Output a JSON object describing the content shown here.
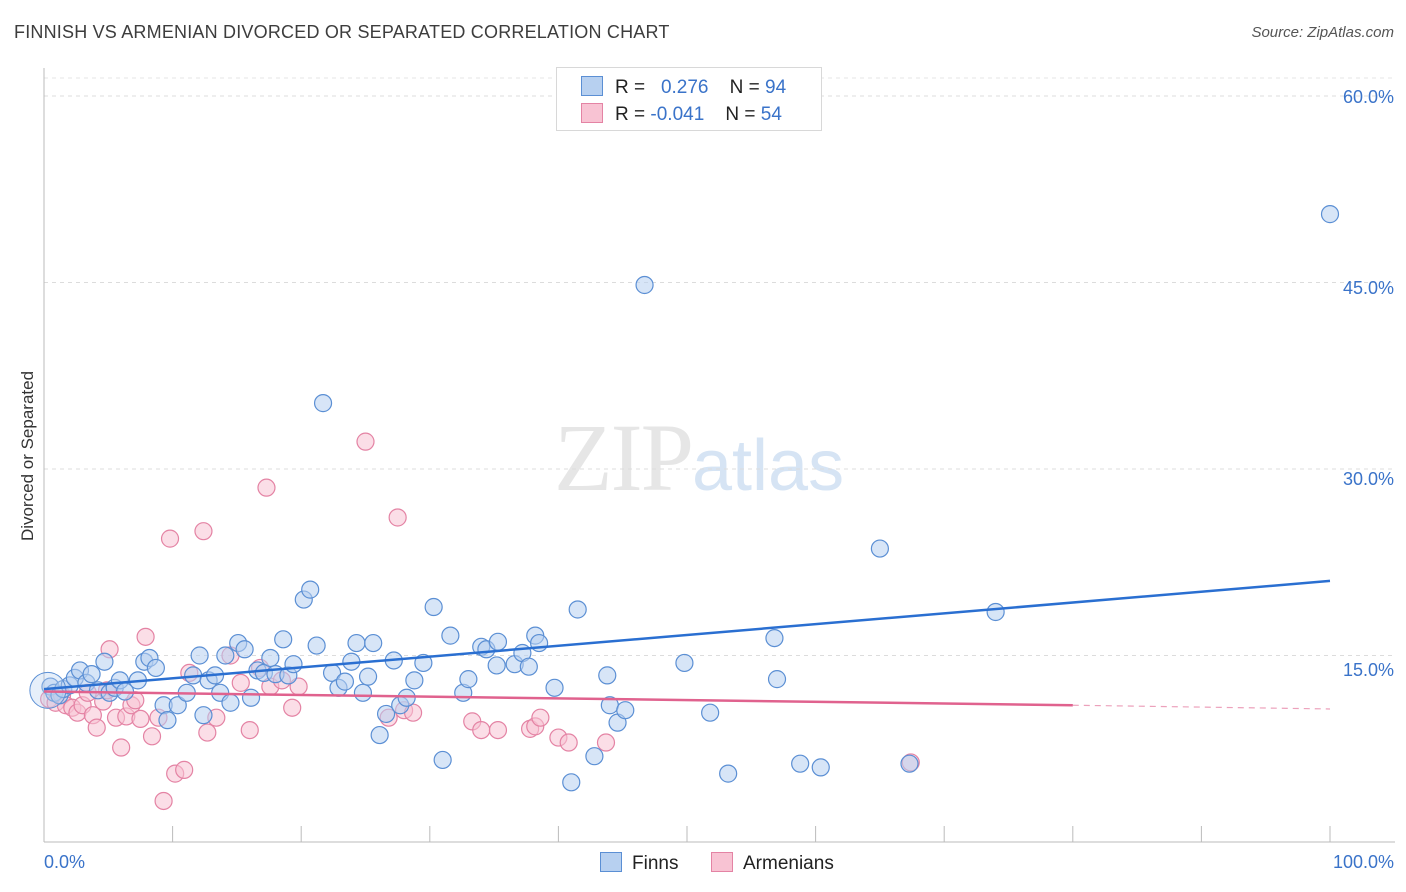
{
  "header": {
    "title": "FINNISH VS ARMENIAN DIVORCED OR SEPARATED CORRELATION CHART",
    "source": "Source: ZipAtlas.com"
  },
  "watermark": {
    "zip": "ZIP",
    "atlas": "atlas"
  },
  "legend": {
    "rows": [
      {
        "r_label": "R =",
        "r_value": "0.276",
        "n_label": "N =",
        "n_value": "94"
      },
      {
        "r_label": "R =",
        "r_value": "-0.041",
        "n_label": "N =",
        "n_value": "54"
      }
    ]
  },
  "bottom_legend": {
    "finns": "Finns",
    "armenians": "Armenians"
  },
  "axes": {
    "ylabel": "Divorced or Separated",
    "yticks": [
      "60.0%",
      "45.0%",
      "30.0%",
      "15.0%"
    ],
    "xtick_left": "0.0%",
    "xtick_right": "100.0%"
  },
  "colors": {
    "finns_fill": "#b7d0f0",
    "finns_stroke": "#5b8fd4",
    "finns_line": "#2a6fd1",
    "armenians_fill": "#f8c3d3",
    "armenians_stroke": "#e483a4",
    "armenians_line": "#e0628e",
    "tick_text": "#3a73c9"
  },
  "chart_data": {
    "type": "scatter",
    "title": "FINNISH VS ARMENIAN DIVORCED OR SEPARATED CORRELATION CHART",
    "xlabel": "",
    "ylabel": "Divorced or Separated",
    "xlim": [
      0,
      100
    ],
    "ylim": [
      0,
      60
    ],
    "grid": true,
    "legend_placement": "top-center",
    "series": [
      {
        "name": "Finns",
        "R": 0.276,
        "N": 94,
        "trend": {
          "x": [
            0,
            100
          ],
          "y": [
            12.3,
            21.0
          ]
        },
        "points": [
          [
            0.5,
            12.5
          ],
          [
            0.8,
            12.0
          ],
          [
            1.2,
            11.8
          ],
          [
            1.5,
            12.3
          ],
          [
            2.0,
            12.6
          ],
          [
            2.4,
            13.2
          ],
          [
            2.8,
            13.8
          ],
          [
            3.3,
            12.8
          ],
          [
            3.7,
            13.5
          ],
          [
            4.2,
            12.2
          ],
          [
            4.7,
            14.5
          ],
          [
            5.1,
            12.0
          ],
          [
            5.5,
            12.4
          ],
          [
            5.9,
            13.0
          ],
          [
            6.3,
            12.1
          ],
          [
            7.3,
            13.0
          ],
          [
            7.8,
            14.5
          ],
          [
            8.2,
            14.8
          ],
          [
            8.7,
            14.0
          ],
          [
            9.3,
            11.0
          ],
          [
            9.6,
            9.8
          ],
          [
            10.4,
            11.0
          ],
          [
            11.1,
            12.0
          ],
          [
            11.6,
            13.4
          ],
          [
            12.1,
            15.0
          ],
          [
            12.4,
            10.2
          ],
          [
            12.8,
            13.0
          ],
          [
            13.3,
            13.4
          ],
          [
            13.7,
            12.0
          ],
          [
            14.1,
            15.0
          ],
          [
            14.5,
            11.2
          ],
          [
            15.1,
            16.0
          ],
          [
            15.6,
            15.5
          ],
          [
            16.1,
            11.6
          ],
          [
            16.6,
            13.8
          ],
          [
            17.1,
            13.6
          ],
          [
            17.6,
            14.8
          ],
          [
            18.0,
            13.5
          ],
          [
            18.6,
            16.3
          ],
          [
            19.0,
            13.4
          ],
          [
            19.4,
            14.3
          ],
          [
            20.2,
            19.5
          ],
          [
            20.7,
            20.3
          ],
          [
            21.2,
            15.8
          ],
          [
            21.7,
            35.3
          ],
          [
            22.4,
            13.6
          ],
          [
            22.9,
            12.4
          ],
          [
            23.4,
            12.9
          ],
          [
            23.9,
            14.5
          ],
          [
            24.3,
            16.0
          ],
          [
            24.8,
            12.0
          ],
          [
            25.2,
            13.3
          ],
          [
            25.6,
            16.0
          ],
          [
            26.1,
            8.6
          ],
          [
            26.6,
            10.3
          ],
          [
            27.2,
            14.6
          ],
          [
            27.7,
            11.0
          ],
          [
            28.2,
            11.6
          ],
          [
            28.8,
            13.0
          ],
          [
            29.5,
            14.4
          ],
          [
            30.3,
            18.9
          ],
          [
            31.0,
            6.6
          ],
          [
            31.6,
            16.6
          ],
          [
            32.6,
            12.0
          ],
          [
            33.0,
            13.1
          ],
          [
            34.0,
            15.7
          ],
          [
            34.4,
            15.5
          ],
          [
            35.3,
            16.1
          ],
          [
            35.2,
            14.2
          ],
          [
            36.6,
            14.3
          ],
          [
            37.2,
            15.2
          ],
          [
            37.7,
            14.1
          ],
          [
            38.2,
            16.6
          ],
          [
            38.5,
            16.0
          ],
          [
            39.7,
            12.4
          ],
          [
            41.0,
            4.8
          ],
          [
            41.5,
            18.7
          ],
          [
            42.8,
            6.9
          ],
          [
            43.8,
            13.4
          ],
          [
            44.0,
            11.0
          ],
          [
            44.6,
            9.6
          ],
          [
            45.2,
            10.6
          ],
          [
            46.7,
            44.8
          ],
          [
            49.8,
            14.4
          ],
          [
            51.8,
            10.4
          ],
          [
            53.2,
            5.5
          ],
          [
            56.8,
            16.4
          ],
          [
            57.0,
            13.1
          ],
          [
            58.8,
            6.3
          ],
          [
            60.4,
            6.0
          ],
          [
            65.0,
            23.6
          ],
          [
            67.3,
            6.3
          ],
          [
            74.0,
            18.5
          ],
          [
            100.0,
            50.5
          ]
        ]
      },
      {
        "name": "Armenians",
        "R": -0.041,
        "N": 54,
        "trend": {
          "x": [
            0,
            80
          ],
          "y": [
            12.1,
            11.0
          ],
          "dashed_to": {
            "x": 100,
            "y": 10.7
          }
        },
        "points": [
          [
            0.4,
            11.5
          ],
          [
            0.9,
            11.2
          ],
          [
            1.4,
            11.8
          ],
          [
            1.7,
            11.0
          ],
          [
            2.2,
            10.8
          ],
          [
            2.6,
            10.4
          ],
          [
            3.0,
            11.0
          ],
          [
            3.4,
            12.0
          ],
          [
            3.8,
            10.2
          ],
          [
            4.1,
            9.2
          ],
          [
            4.6,
            11.3
          ],
          [
            4.9,
            12.2
          ],
          [
            5.1,
            15.5
          ],
          [
            5.6,
            10.0
          ],
          [
            6.0,
            7.6
          ],
          [
            6.4,
            10.1
          ],
          [
            6.8,
            11.0
          ],
          [
            7.1,
            11.4
          ],
          [
            7.5,
            9.9
          ],
          [
            7.9,
            16.5
          ],
          [
            8.4,
            8.5
          ],
          [
            8.9,
            10.0
          ],
          [
            9.3,
            3.3
          ],
          [
            9.8,
            24.4
          ],
          [
            10.2,
            5.5
          ],
          [
            10.9,
            5.8
          ],
          [
            11.3,
            13.6
          ],
          [
            12.4,
            25.0
          ],
          [
            12.7,
            8.8
          ],
          [
            13.4,
            10.0
          ],
          [
            14.5,
            15.0
          ],
          [
            15.3,
            12.8
          ],
          [
            16.0,
            9.0
          ],
          [
            16.8,
            14.0
          ],
          [
            17.3,
            28.5
          ],
          [
            17.6,
            12.5
          ],
          [
            18.5,
            13.0
          ],
          [
            19.3,
            10.8
          ],
          [
            19.8,
            12.5
          ],
          [
            25.0,
            32.2
          ],
          [
            26.8,
            10.0
          ],
          [
            27.5,
            26.1
          ],
          [
            28.0,
            10.6
          ],
          [
            28.7,
            10.4
          ],
          [
            33.3,
            9.7
          ],
          [
            34.0,
            9.0
          ],
          [
            35.3,
            9.0
          ],
          [
            37.8,
            9.1
          ],
          [
            38.2,
            9.3
          ],
          [
            38.6,
            10.0
          ],
          [
            40.0,
            8.4
          ],
          [
            40.8,
            8.0
          ],
          [
            43.7,
            8.0
          ],
          [
            67.4,
            6.4
          ]
        ]
      }
    ]
  }
}
